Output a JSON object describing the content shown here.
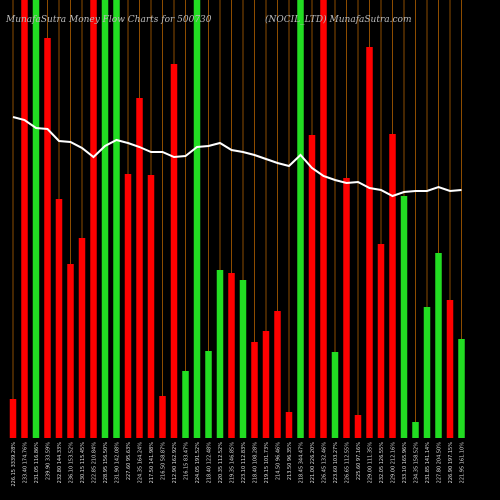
{
  "chart_data": {
    "type": "bar",
    "title": "MunafaSutra  Money Flow Charts for 500730",
    "subtitle": "(NOCIL_LTD) MunafaSutra.com",
    "categories": [
      "226.15 3339.28%",
      "233.40 174.76%",
      "231.05 116.86%",
      "239.90 33.59%",
      "232.80 144.33%",
      "236.10 153.52%",
      "230.15 115.45%",
      "222.85 210.84%",
      "228.95 156.50%",
      "231.90 142.08%",
      "227.60 95.63%",
      "224.35 164.24%",
      "217.50 141.98%",
      "216.50 58.87%",
      "212.90 162.92%",
      "216.15 83.47%",
      "224.05 191.52%",
      "218.40 122.48%",
      "220.35 112.52%",
      "219.35 146.85%",
      "223.10 112.83%",
      "218.40 108.28%",
      "219.15 101.73%",
      "214.50 96.46%",
      "213.50 96.35%",
      "218.45 344.47%",
      "221.00 226.20%",
      "226.45 132.46%",
      "223.60 103.27%",
      "226.65 112.55%",
      "225.60 97.16%",
      "229.00 111.35%",
      "232.05 126.55%",
      "229.00 212.16%",
      "233.10 165.96%",
      "234.35 158.52%",
      "231.85 141.14%",
      "227.80 204.50%",
      "226.90 197.15%",
      "221.95 161.10%"
    ],
    "values": [
      39,
      438,
      438,
      400,
      239,
      174,
      200,
      438,
      438,
      438,
      264,
      340,
      263,
      42,
      374,
      67,
      438,
      87,
      168,
      165,
      158,
      96,
      107,
      127,
      26,
      438,
      303,
      438,
      86,
      260,
      23,
      391,
      194,
      304,
      242,
      16,
      131,
      185,
      138,
      99
    ],
    "colors": [
      "#ff0000",
      "#ff0000",
      "#22dd22",
      "#ff0000",
      "#ff0000",
      "#ff0000",
      "#ff0000",
      "#ff0000",
      "#22dd22",
      "#22dd22",
      "#ff0000",
      "#ff0000",
      "#ff0000",
      "#ff0000",
      "#ff0000",
      "#22dd22",
      "#22dd22",
      "#22dd22",
      "#22dd22",
      "#ff0000",
      "#22dd22",
      "#ff0000",
      "#ff0000",
      "#ff0000",
      "#ff0000",
      "#22dd22",
      "#ff0000",
      "#ff0000",
      "#22dd22",
      "#ff0000",
      "#ff0000",
      "#ff0000",
      "#ff0000",
      "#ff0000",
      "#22dd22",
      "#22dd22",
      "#22dd22",
      "#22dd22",
      "#ff0000",
      "#22dd22"
    ],
    "line": [
      321,
      318,
      310,
      309,
      297,
      296,
      290,
      281,
      292,
      298,
      295,
      291,
      286,
      286,
      281,
      282,
      291,
      292,
      295,
      288,
      286,
      283,
      279,
      275,
      272,
      283,
      270,
      262,
      258,
      255,
      256,
      250,
      248,
      242,
      246,
      247,
      247,
      251,
      247,
      248
    ],
    "line_color": "#ffffff",
    "grid_color": "#b06000",
    "ylim": [
      0,
      438
    ]
  }
}
